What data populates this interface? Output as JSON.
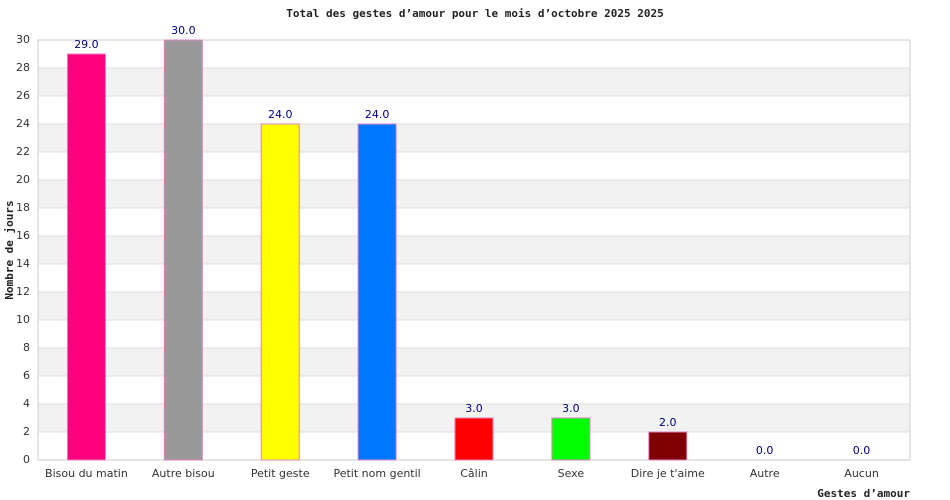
{
  "chart_data": {
    "type": "bar",
    "title": "Total des gestes d’amour pour le mois d’octobre 2025 2025",
    "x_label": "Gestes d’amour",
    "y_label": "Nombre de jours",
    "categories": [
      "Bisou du matin",
      "Autre bisou",
      "Petit geste",
      "Petit nom gentil",
      "Câlin",
      "Sexe",
      "Dire je t'aime",
      "Autre",
      "Aucun"
    ],
    "values": [
      29,
      30,
      24,
      24,
      3,
      3,
      2,
      0,
      0
    ],
    "value_labels": [
      "29.0",
      "30.0",
      "24.0",
      "24.0",
      "3.0",
      "3.0",
      "2.0",
      "0.0",
      "0.0"
    ],
    "colors": [
      "#ff007f",
      "#999999",
      "#ffff00",
      "#0077ff",
      "#ff0000",
      "#00ff00",
      "#7f0000",
      "#cccccc",
      "#cccccc"
    ],
    "ylim": [
      0,
      30
    ],
    "yticks": [
      0,
      2,
      4,
      6,
      8,
      10,
      12,
      14,
      16,
      18,
      20,
      22,
      24,
      26,
      28,
      30
    ],
    "grid": true
  }
}
